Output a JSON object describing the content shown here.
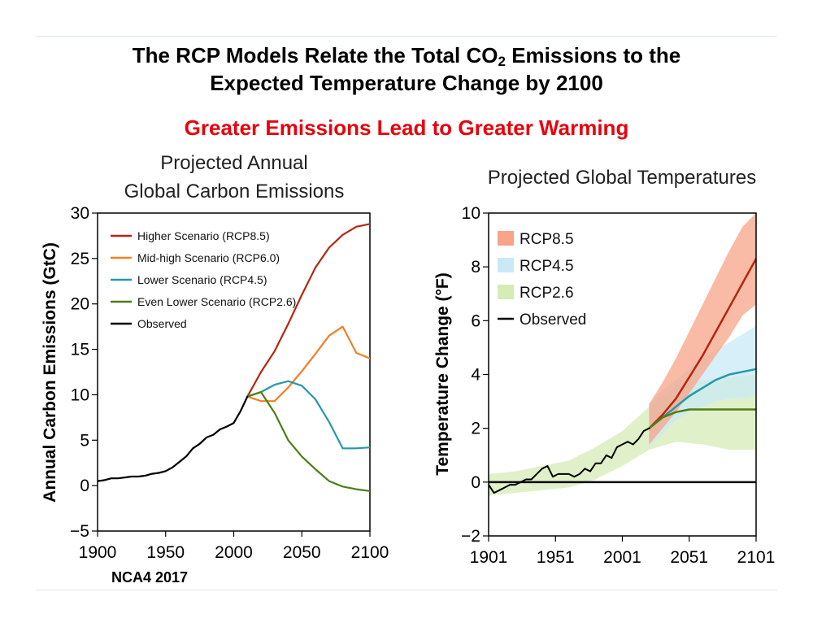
{
  "header": {
    "title_line1_pre": "The RCP Models Relate the Total CO",
    "title_line1_sub": "2",
    "title_line1_post": " Emissions to the",
    "title_line2": "Expected Temperature Change by 2100",
    "subtitle": "Greater Emissions Lead to Greater Warming"
  },
  "footer": {
    "source": "NCA4 2017"
  },
  "colors": {
    "rcp85": "#b5260f",
    "rcp60": "#f28024",
    "rcp45": "#2599a6",
    "rcp26": "#4f7d16",
    "observed": "#000000",
    "subtitle": "#e8000b"
  },
  "chart_data": [
    {
      "type": "line",
      "title_lines": [
        "Projected Annual",
        "Global Carbon Emissions"
      ],
      "xlabel": "",
      "ylabel": "Annual Carbon Emissions (GtC)",
      "xlim": [
        1900,
        2100
      ],
      "ylim": [
        -5,
        30
      ],
      "xticks": [
        1900,
        1950,
        2000,
        2050,
        2100
      ],
      "yticks": [
        -5,
        0,
        5,
        10,
        15,
        20,
        25,
        30
      ],
      "ytick_labels": [
        "−5",
        "0",
        "5",
        "10",
        "15",
        "20",
        "25",
        "30"
      ],
      "grid": false,
      "legend_position": "top-left",
      "series": [
        {
          "name": "Higher Scenario (RCP8.5)",
          "color": "#b5260f",
          "x": [
            2010,
            2020,
            2030,
            2040,
            2050,
            2060,
            2070,
            2080,
            2090,
            2100
          ],
          "y": [
            9.8,
            12.5,
            14.8,
            17.8,
            21.0,
            24.0,
            26.2,
            27.6,
            28.5,
            28.8
          ]
        },
        {
          "name": "Mid-high Scenario (RCP6.0)",
          "color": "#f28024",
          "x": [
            2010,
            2020,
            2030,
            2040,
            2050,
            2060,
            2070,
            2080,
            2090,
            2100
          ],
          "y": [
            9.8,
            9.3,
            9.3,
            10.8,
            12.6,
            14.5,
            16.5,
            17.5,
            14.6,
            14.0
          ]
        },
        {
          "name": "Lower Scenario (RCP4.5)",
          "color": "#2599a6",
          "x": [
            2010,
            2020,
            2030,
            2040,
            2050,
            2060,
            2070,
            2080,
            2090,
            2100
          ],
          "y": [
            9.8,
            10.3,
            11.1,
            11.5,
            11.0,
            9.5,
            7.0,
            4.1,
            4.1,
            4.2
          ]
        },
        {
          "name": "Even Lower Scenario (RCP2.6)",
          "color": "#4f7d16",
          "x": [
            2010,
            2020,
            2030,
            2040,
            2050,
            2060,
            2070,
            2080,
            2090,
            2100
          ],
          "y": [
            9.8,
            10.3,
            8.0,
            5.0,
            3.2,
            1.8,
            0.5,
            -0.1,
            -0.4,
            -0.6
          ]
        },
        {
          "name": "Observed",
          "color": "#000000",
          "x": [
            1900,
            1905,
            1910,
            1915,
            1920,
            1925,
            1930,
            1935,
            1940,
            1945,
            1950,
            1955,
            1960,
            1965,
            1970,
            1975,
            1980,
            1985,
            1990,
            1995,
            2000,
            2005,
            2010
          ],
          "y": [
            0.5,
            0.6,
            0.8,
            0.8,
            0.9,
            1.0,
            1.0,
            1.1,
            1.3,
            1.4,
            1.6,
            2.0,
            2.6,
            3.2,
            4.1,
            4.6,
            5.3,
            5.6,
            6.2,
            6.5,
            6.9,
            8.2,
            9.8
          ]
        }
      ]
    },
    {
      "type": "line",
      "title": "Projected Global Temperatures",
      "xlabel": "",
      "ylabel": "Temperature Change (°F)",
      "xlim": [
        1901,
        2101
      ],
      "ylim": [
        -2,
        10
      ],
      "xticks": [
        1901,
        1951,
        2001,
        2051,
        2101
      ],
      "yticks": [
        -2,
        0,
        2,
        4,
        6,
        8,
        10
      ],
      "ytick_labels": [
        "−2",
        "0",
        "2",
        "4",
        "6",
        "8",
        "10"
      ],
      "grid": false,
      "legend_position": "top-left",
      "reference_line_y": 0,
      "legend": [
        {
          "name": "RCP8.5",
          "kind": "band",
          "color": "#f7a488"
        },
        {
          "name": "RCP4.5",
          "kind": "band",
          "color": "#c9e9f5"
        },
        {
          "name": "RCP2.6",
          "kind": "band",
          "color": "#d5ecb7"
        },
        {
          "name": "Observed",
          "kind": "line",
          "color": "#000000"
        }
      ],
      "bands": [
        {
          "name": "RCP2.6",
          "color": "#d5ecb7",
          "x": [
            1901,
            1921,
            1941,
            1961,
            1981,
            2001,
            2021,
            2041,
            2061,
            2081,
            2101
          ],
          "low": [
            -0.5,
            -0.4,
            -0.3,
            -0.2,
            0.1,
            0.6,
            1.2,
            1.5,
            1.4,
            1.2,
            1.2
          ],
          "high": [
            0.3,
            0.4,
            0.6,
            0.8,
            1.3,
            1.9,
            2.8,
            3.6,
            3.8,
            3.9,
            4.0
          ]
        },
        {
          "name": "RCP4.5",
          "color": "#c9e9f5",
          "x": [
            2021,
            2031,
            2041,
            2051,
            2061,
            2071,
            2081,
            2091,
            2101
          ],
          "low": [
            1.3,
            1.8,
            2.3,
            2.6,
            2.8,
            3.0,
            3.1,
            3.1,
            3.2
          ],
          "high": [
            2.9,
            3.4,
            3.8,
            4.2,
            4.6,
            4.9,
            5.2,
            5.5,
            5.8
          ]
        },
        {
          "name": "RCP8.5",
          "color": "#f7a488",
          "x": [
            2021,
            2031,
            2041,
            2051,
            2061,
            2071,
            2081,
            2091,
            2101
          ],
          "low": [
            1.4,
            2.0,
            2.6,
            3.3,
            4.0,
            4.7,
            5.4,
            6.2,
            6.6
          ],
          "high": [
            2.9,
            3.7,
            4.6,
            5.6,
            6.6,
            7.6,
            8.6,
            9.5,
            10.0
          ]
        }
      ],
      "series": [
        {
          "name": "RCP8.5",
          "color": "#b5260f",
          "x": [
            2021,
            2031,
            2041,
            2051,
            2061,
            2071,
            2081,
            2091,
            2101
          ],
          "y": [
            2.0,
            2.5,
            3.1,
            3.9,
            4.7,
            5.6,
            6.5,
            7.4,
            8.3
          ]
        },
        {
          "name": "RCP4.5",
          "color": "#2599a6",
          "x": [
            2021,
            2031,
            2041,
            2051,
            2061,
            2071,
            2081,
            2091,
            2101
          ],
          "y": [
            2.0,
            2.4,
            2.8,
            3.2,
            3.5,
            3.8,
            4.0,
            4.1,
            4.2
          ]
        },
        {
          "name": "RCP2.6",
          "color": "#4f7d16",
          "x": [
            2021,
            2031,
            2041,
            2051,
            2061,
            2071,
            2081,
            2091,
            2101
          ],
          "y": [
            2.0,
            2.4,
            2.6,
            2.7,
            2.7,
            2.7,
            2.7,
            2.7,
            2.7
          ]
        },
        {
          "name": "Observed",
          "color": "#000000",
          "x": [
            1901,
            1905,
            1909,
            1913,
            1917,
            1921,
            1925,
            1929,
            1933,
            1937,
            1941,
            1945,
            1949,
            1953,
            1957,
            1961,
            1965,
            1969,
            1973,
            1977,
            1981,
            1985,
            1989,
            1993,
            1997,
            2001,
            2005,
            2009,
            2013,
            2017,
            2021
          ],
          "y": [
            -0.1,
            -0.4,
            -0.3,
            -0.2,
            -0.1,
            -0.1,
            0.0,
            0.1,
            0.1,
            0.3,
            0.5,
            0.6,
            0.2,
            0.3,
            0.3,
            0.3,
            0.2,
            0.3,
            0.5,
            0.4,
            0.7,
            0.7,
            1.0,
            0.9,
            1.3,
            1.4,
            1.5,
            1.4,
            1.6,
            1.9,
            2.0
          ]
        }
      ]
    }
  ]
}
